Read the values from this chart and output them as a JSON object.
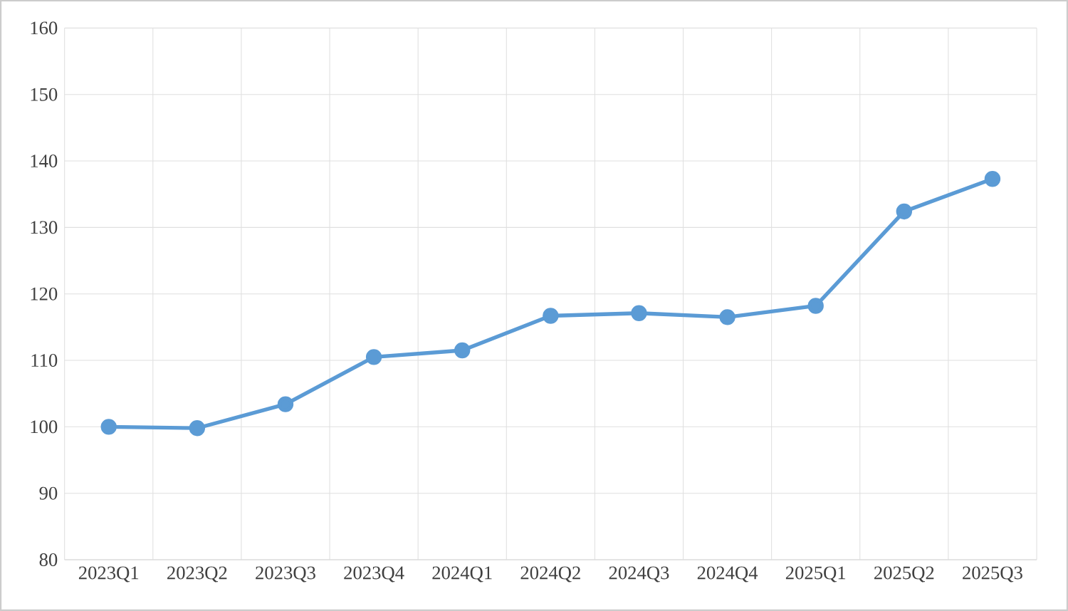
{
  "chart_data": {
    "type": "line",
    "categories": [
      "2023Q1",
      "2023Q2",
      "2023Q3",
      "2023Q4",
      "2024Q1",
      "2024Q2",
      "2024Q3",
      "2024Q4",
      "2025Q1",
      "2025Q2",
      "2025Q3"
    ],
    "values": [
      100,
      99.8,
      103.4,
      110.5,
      111.5,
      116.7,
      117.1,
      116.5,
      118.2,
      132.4,
      137.3
    ],
    "color": "#5b9bd5",
    "marker": "circle",
    "line_style": "solid",
    "grid": true,
    "ylim": [
      80,
      160
    ],
    "yticks": [
      80,
      90,
      100,
      110,
      120,
      130,
      140,
      150,
      160
    ]
  }
}
